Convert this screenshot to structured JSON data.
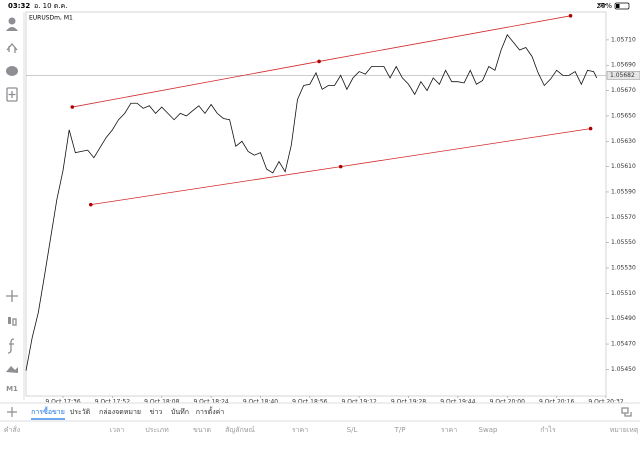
{
  "status_bar": {
    "time": "03:32",
    "date": "อ. 10 ต.ค.",
    "battery": "26%"
  },
  "sidebar": {
    "timeframe": "M1"
  },
  "chart_data": {
    "type": "line",
    "title": "EURUSDm, M1",
    "x": [
      1044,
      1046,
      1048,
      1050,
      1052,
      1054,
      1056,
      1058,
      1060,
      1062,
      1064,
      1066,
      1068,
      1070,
      1072,
      1074,
      1076,
      1078,
      1080,
      1082,
      1084,
      1086,
      1088,
      1090,
      1092,
      1094,
      1096,
      1098,
      1100,
      1102,
      1104,
      1106,
      1108,
      1110,
      1112,
      1114,
      1116,
      1118,
      1120,
      1122,
      1124,
      1126,
      1128,
      1130,
      1132,
      1134,
      1136,
      1138,
      1140,
      1142,
      1144,
      1146,
      1148,
      1150,
      1152,
      1154,
      1156,
      1158,
      1160,
      1162,
      1164,
      1166,
      1168,
      1170,
      1172,
      1174,
      1176,
      1178,
      1180,
      1182,
      1184,
      1186,
      1188,
      1190,
      1192,
      1194,
      1196,
      1198,
      1200,
      1202,
      1204,
      1206,
      1208,
      1210,
      1212,
      1214,
      1216,
      1218,
      1220,
      1222,
      1224,
      1226,
      1228,
      1229
    ],
    "series": [
      {
        "name": "EURUSDm",
        "color": "#111111",
        "values": [
          1.05449,
          1.05475,
          1.05495,
          1.05524,
          1.05554,
          1.05584,
          1.05607,
          1.05639,
          1.05621,
          1.05622,
          1.05623,
          1.05617,
          1.05625,
          1.05633,
          1.05639,
          1.05647,
          1.05652,
          1.0566,
          1.0566,
          1.05656,
          1.05658,
          1.05652,
          1.05657,
          1.05652,
          1.05647,
          1.05652,
          1.0565,
          1.05654,
          1.05658,
          1.05652,
          1.05659,
          1.05652,
          1.05648,
          1.05647,
          1.05626,
          1.0563,
          1.05622,
          1.05619,
          1.05621,
          1.05608,
          1.05605,
          1.05614,
          1.05606,
          1.05627,
          1.05663,
          1.05674,
          1.05675,
          1.05684,
          1.05671,
          1.05674,
          1.05674,
          1.05682,
          1.05671,
          1.0568,
          1.05685,
          1.05683,
          1.05689,
          1.05689,
          1.05689,
          1.0568,
          1.05689,
          1.0568,
          1.05675,
          1.05667,
          1.05677,
          1.0567,
          1.0568,
          1.05675,
          1.05686,
          1.05677,
          1.05677,
          1.05676,
          1.05686,
          1.05675,
          1.05678,
          1.05689,
          1.05686,
          1.05702,
          1.05714,
          1.05708,
          1.05702,
          1.05704,
          1.05697,
          1.05684,
          1.05674,
          1.05679,
          1.05686,
          1.05682,
          1.05682,
          1.05685,
          1.05675,
          1.05686,
          1.05685,
          1.0568
        ]
      }
    ],
    "trendlines": [
      {
        "color": "#d42a2a",
        "x": [
          1059,
          1139,
          1220.5
        ],
        "y": [
          1.05657,
          1.05693,
          1.05729
        ]
      },
      {
        "color": "#d42a2a",
        "x": [
          1065,
          1146,
          1227
        ],
        "y": [
          1.0558,
          1.0561,
          1.0564
        ]
      }
    ],
    "current_price": {
      "value": 1.05682,
      "label": "1.05682"
    },
    "xlim": [
      1044,
      1232
    ],
    "ylim": [
      1.05429,
      1.05732
    ],
    "xticks": [
      {
        "value": 1056,
        "label": "9 Oct 17:36"
      },
      {
        "value": 1072,
        "label": "9 Oct 17:52"
      },
      {
        "value": 1088,
        "label": "9 Oct 18:08"
      },
      {
        "value": 1104,
        "label": "9 Oct 18:24"
      },
      {
        "value": 1120,
        "label": "9 Oct 18:40"
      },
      {
        "value": 1136,
        "label": "9 Oct 18:56"
      },
      {
        "value": 1152,
        "label": "9 Oct 19:12"
      },
      {
        "value": 1168,
        "label": "9 Oct 19:28"
      },
      {
        "value": 1184,
        "label": "9 Oct 19:44"
      },
      {
        "value": 1200,
        "label": "9 Oct 20:00"
      },
      {
        "value": 1216,
        "label": "9 Oct 20:16"
      },
      {
        "value": 1232,
        "label": "9 Oct 20:32"
      }
    ],
    "yticks": [
      {
        "value": 1.0571,
        "label": "1.05710"
      },
      {
        "value": 1.0569,
        "label": "1.05690"
      },
      {
        "value": 1.0567,
        "label": "1.05670"
      },
      {
        "value": 1.0565,
        "label": "1.05650"
      },
      {
        "value": 1.0563,
        "label": "1.05630"
      },
      {
        "value": 1.0561,
        "label": "1.05610"
      },
      {
        "value": 1.0559,
        "label": "1.05590"
      },
      {
        "value": 1.0557,
        "label": "1.05570"
      },
      {
        "value": 1.0555,
        "label": "1.05550"
      },
      {
        "value": 1.0553,
        "label": "1.05530"
      },
      {
        "value": 1.0551,
        "label": "1.05510"
      },
      {
        "value": 1.0549,
        "label": "1.05490"
      },
      {
        "value": 1.0547,
        "label": "1.05470"
      },
      {
        "value": 1.0545,
        "label": "1.05450"
      }
    ],
    "grid": false
  },
  "tabs": [
    "การซื้อขาย",
    "ประวัติ",
    "กล่องจดหมาย",
    "ข่าว",
    "บันทึก",
    "การตั้งค่า"
  ],
  "active_tab": 0,
  "table_headers": [
    "คำสั่ง",
    "เวลา",
    "ประเภท",
    "ขนาด",
    "สัญลักษณ์",
    "ราคา",
    "S/L",
    "T/P",
    "ราคา",
    "Swap",
    "กำไร",
    "หมายเหตุ"
  ]
}
